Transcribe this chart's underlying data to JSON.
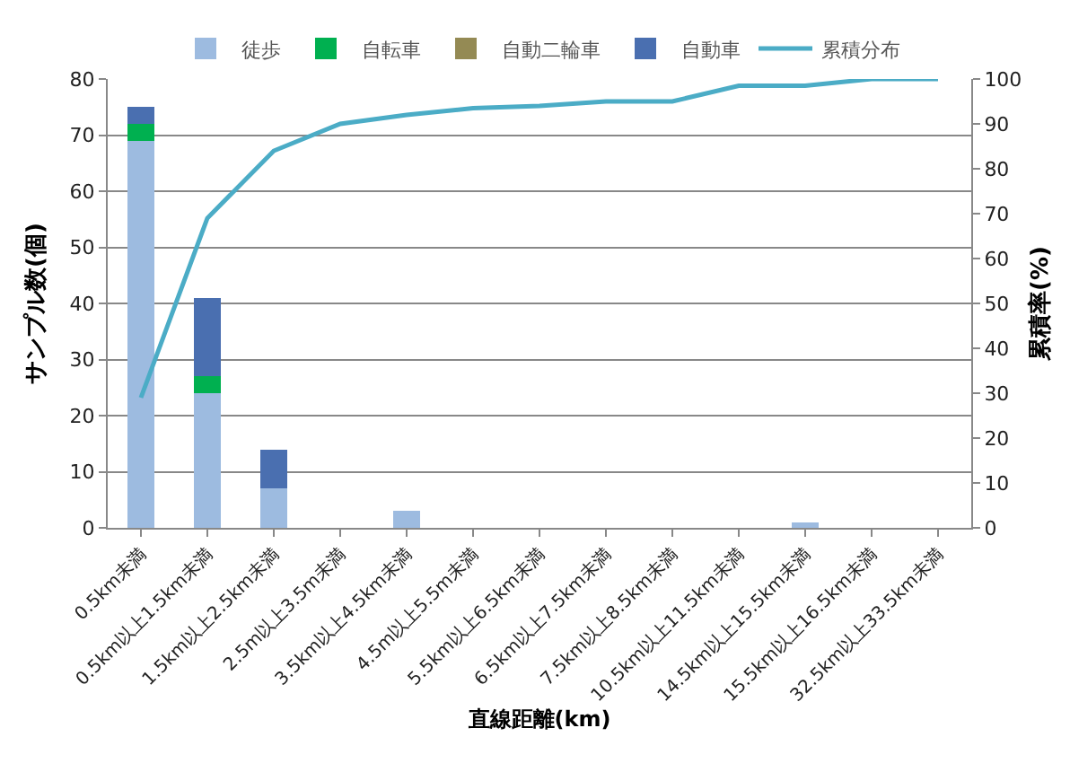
{
  "chart_data": {
    "type": "bar",
    "stacked": true,
    "xlabel": "直線距離(km)",
    "ylabel": "サンプル数(個)",
    "y2label": "累積率(%)",
    "categories": [
      "0.5km未満",
      "0.5km以上1.5km未満",
      "1.5km以上2.5km未満",
      "2.5m以上3.5m未満",
      "3.5km以上4.5km未満",
      "4.5m以上5.5m未満",
      "5.5km以上6.5km未満",
      "6.5km以上7.5km未満",
      "7.5km以上8.5km未満",
      "10.5km以上11.5km未満",
      "14.5km以上15.5km未満",
      "15.5km以上16.5km未満",
      "32.5km以上33.5km未満"
    ],
    "series": [
      {
        "name": "徒歩",
        "color": "#9dbbe0",
        "values": [
          69,
          24,
          7,
          0,
          3,
          0,
          0,
          0,
          0,
          0,
          1,
          0,
          0
        ]
      },
      {
        "name": "自転車",
        "color": "#00b050",
        "values": [
          3,
          3,
          0,
          0,
          0,
          0,
          0,
          0,
          0,
          0,
          0,
          0,
          0
        ]
      },
      {
        "name": "自動二輪車",
        "color": "#948a54",
        "values": [
          0,
          0,
          0,
          0,
          0,
          0,
          0,
          0,
          0,
          0,
          0,
          0,
          0
        ]
      },
      {
        "name": "自動車",
        "color": "#4a6fb0",
        "values": [
          3,
          14,
          7,
          0,
          0,
          0,
          0,
          0,
          0,
          0,
          0,
          0,
          0
        ]
      },
      {
        "name": "累積分布",
        "type": "line",
        "axis": "y2",
        "color": "#4bacc6",
        "values": [
          29,
          69,
          84,
          90,
          92,
          93.5,
          94,
          95,
          95,
          98.5,
          98.5,
          100,
          100
        ]
      }
    ],
    "ylim": [
      0,
      80
    ],
    "yticks": [
      0,
      10,
      20,
      30,
      40,
      50,
      60,
      70,
      80
    ],
    "y2lim": [
      0,
      100
    ],
    "y2ticks": [
      0,
      10,
      20,
      30,
      40,
      50,
      60,
      70,
      80,
      90,
      100
    ],
    "grid": "y",
    "legend": "top",
    "marker": "none",
    "line_style": "solid"
  }
}
